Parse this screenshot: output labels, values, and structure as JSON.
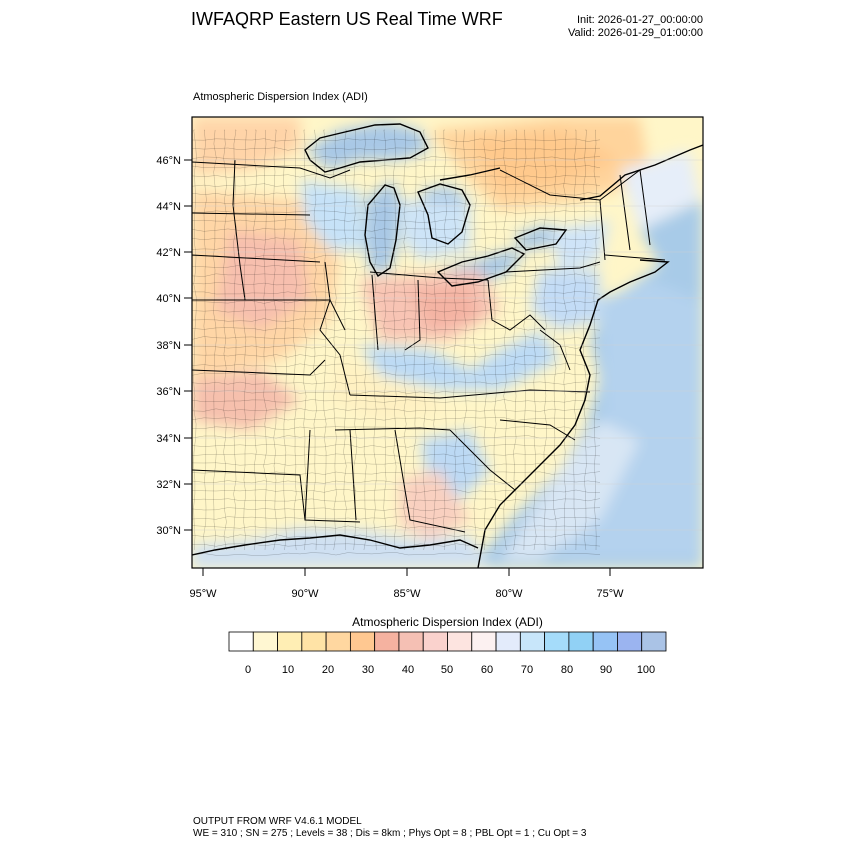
{
  "header": {
    "title": "IWFAQRP Eastern US Real Time WRF",
    "init": "Init: 2026-01-27_00:00:00",
    "valid": "Valid: 2026-01-29_01:00:00"
  },
  "map": {
    "subtitle": "Atmospheric Dispersion Index   (ADI)",
    "lat_labels": [
      "46°N",
      "44°N",
      "42°N",
      "40°N",
      "38°N",
      "36°N",
      "34°N",
      "32°N",
      "30°N"
    ],
    "lon_labels": [
      "95°W",
      "90°W",
      "85°W",
      "80°W",
      "75°W"
    ]
  },
  "colorbar": {
    "title": "Atmospheric Dispersion Index  (ADI)",
    "tick_labels": [
      "0",
      "10",
      "20",
      "30",
      "40",
      "50",
      "60",
      "70",
      "80",
      "90",
      "100"
    ],
    "colors": [
      "#ffffff",
      "#fff7d2",
      "#ffeeb4",
      "#ffe3a6",
      "#ffd7a0",
      "#ffc891",
      "#f5b2a0",
      "#f5c0b4",
      "#fad2cd",
      "#fde4e0",
      "#fcf1f1",
      "#e3ebfb",
      "#c8e6fa",
      "#a5dcfa",
      "#91d1f5",
      "#96c3f5",
      "#9bb4f0",
      "#aac3e6"
    ]
  },
  "footer": {
    "line1": "OUTPUT FROM WRF V4.6.1 MODEL",
    "line2": "WE = 310 ; SN = 275 ; Levels = 38 ; Dis = 8km ; Phys Opt = 8 ; PBL Opt = 1 ; Cu Opt = 3"
  }
}
